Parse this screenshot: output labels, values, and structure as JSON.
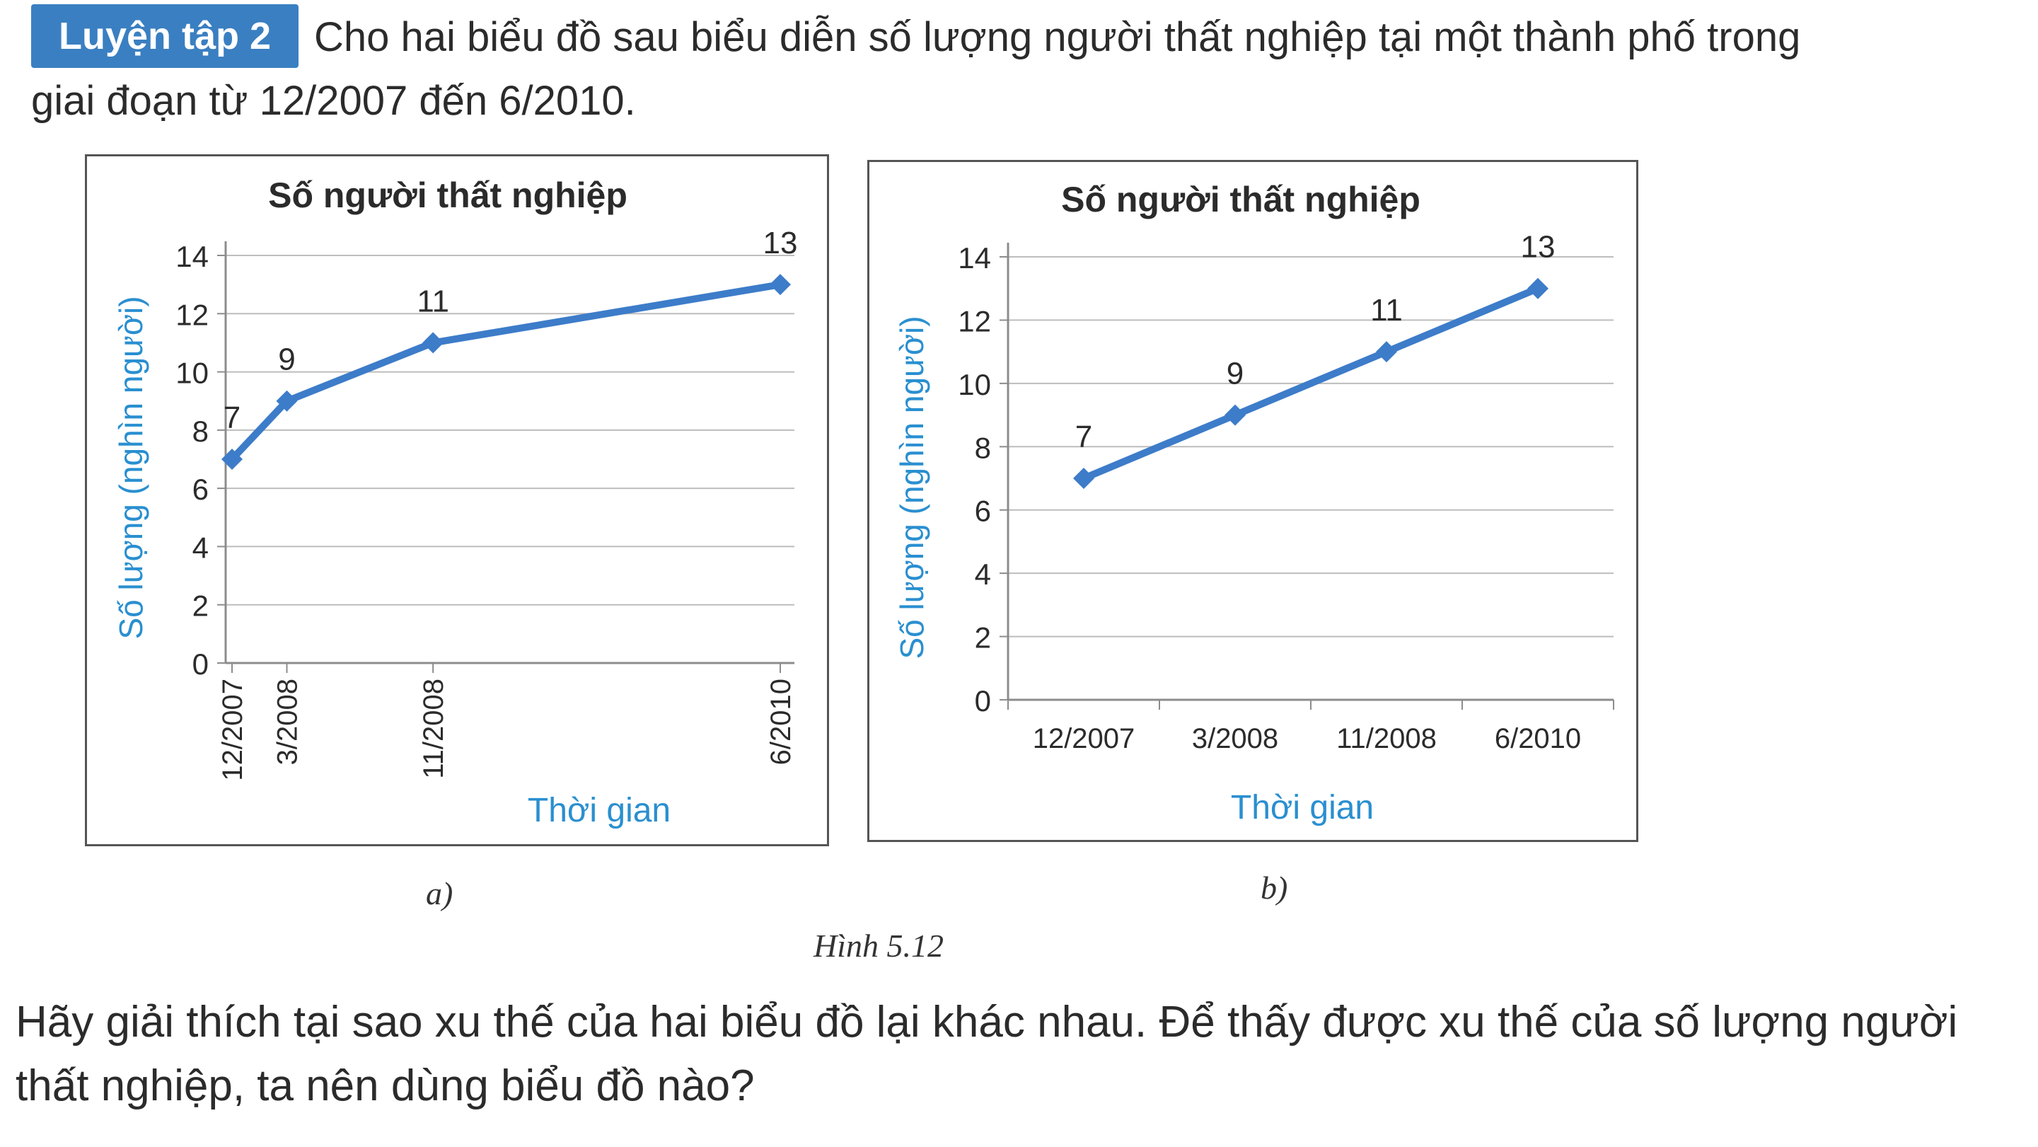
{
  "header": {
    "badge": "Luyện tập 2",
    "intro": "Cho hai biểu đồ sau biểu diễn số lượng người thất nghiệp tại một thành phố trong giai đoạn từ 12/2007 đến 6/2010."
  },
  "figure": {
    "label_a": "a)",
    "label_b": "b)",
    "caption": "Hình 5.12"
  },
  "question": "Hãy giải thích tại sao xu thế của hai biểu đồ lại khác nhau. Để thấy được xu thế của số lượng người thất nghiệp, ta nên dùng biểu đồ nào?",
  "chart_data": [
    {
      "type": "line",
      "title": "Số người thất nghiệp",
      "xlabel": "Thời gian",
      "ylabel": "Số lượng (nghìn người)",
      "x_scale": "time",
      "categories": [
        "12/2007",
        "3/2008",
        "11/2008",
        "6/2010"
      ],
      "x_months": [
        0,
        3,
        11,
        30
      ],
      "values": [
        7,
        9,
        11,
        13
      ],
      "data_labels": [
        "7",
        "9",
        "11",
        "13"
      ],
      "yticks": [
        0,
        2,
        4,
        6,
        8,
        10,
        12,
        14
      ],
      "ylim": [
        0,
        14
      ],
      "grid": true,
      "x_tick_rotation": "vertical",
      "color": "#3d7cc9"
    },
    {
      "type": "line",
      "title": "Số người thất nghiệp",
      "xlabel": "Thời gian",
      "ylabel": "Số lượng (nghìn người)",
      "x_scale": "category",
      "categories": [
        "12/2007",
        "3/2008",
        "11/2008",
        "6/2010"
      ],
      "values": [
        7,
        9,
        11,
        13
      ],
      "data_labels": [
        "7",
        "9",
        "11",
        "13"
      ],
      "yticks": [
        0,
        2,
        4,
        6,
        8,
        10,
        12,
        14
      ],
      "ylim": [
        0,
        14
      ],
      "grid": true,
      "x_tick_rotation": "horizontal",
      "color": "#3d7cc9"
    }
  ]
}
